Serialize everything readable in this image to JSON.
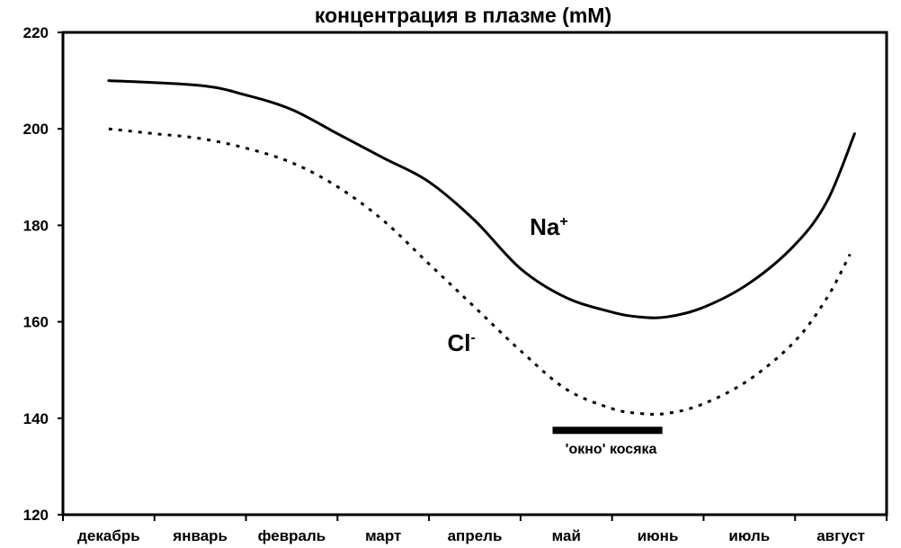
{
  "chart_data": {
    "type": "line",
    "title": "концентрация в плазме (mM)",
    "xlabel": "",
    "ylabel": "",
    "categories": [
      "декабрь",
      "январь",
      "февраль",
      "март",
      "апрель",
      "май",
      "июнь",
      "июль",
      "август"
    ],
    "ylim": [
      120,
      220
    ],
    "yticks": [
      120,
      140,
      160,
      180,
      200,
      220
    ],
    "grid": false,
    "series": [
      {
        "name": "Na+",
        "label_main": "Na",
        "label_sup": "+",
        "style": "solid",
        "x": [
          0.5,
          1.5,
          2.0,
          2.5,
          3.0,
          3.5,
          4.0,
          4.5,
          5.0,
          5.5,
          6.0,
          6.3,
          6.6,
          7.0,
          7.5,
          8.0,
          8.35,
          8.65
        ],
        "values": [
          210,
          209,
          207,
          204,
          199,
          194,
          189,
          181,
          171,
          165,
          162,
          161,
          161,
          163,
          168,
          176,
          185,
          199
        ]
      },
      {
        "name": "Cl-",
        "label_main": "Cl",
        "label_sup": "-",
        "style": "dotted",
        "x": [
          0.5,
          1.0,
          1.5,
          2.0,
          2.5,
          3.0,
          3.5,
          4.0,
          4.5,
          5.0,
          5.5,
          6.0,
          6.3,
          6.6,
          7.0,
          7.5,
          8.0,
          8.35,
          8.6
        ],
        "values": [
          200,
          199,
          198,
          196,
          193,
          188,
          181,
          172,
          163,
          154,
          146,
          142,
          141,
          141,
          143,
          148,
          156,
          165,
          174
        ]
      }
    ],
    "annotations": [
      {
        "text": "'окно' косяка",
        "x_range": [
          5.35,
          6.55
        ],
        "y": 137.5
      }
    ]
  }
}
